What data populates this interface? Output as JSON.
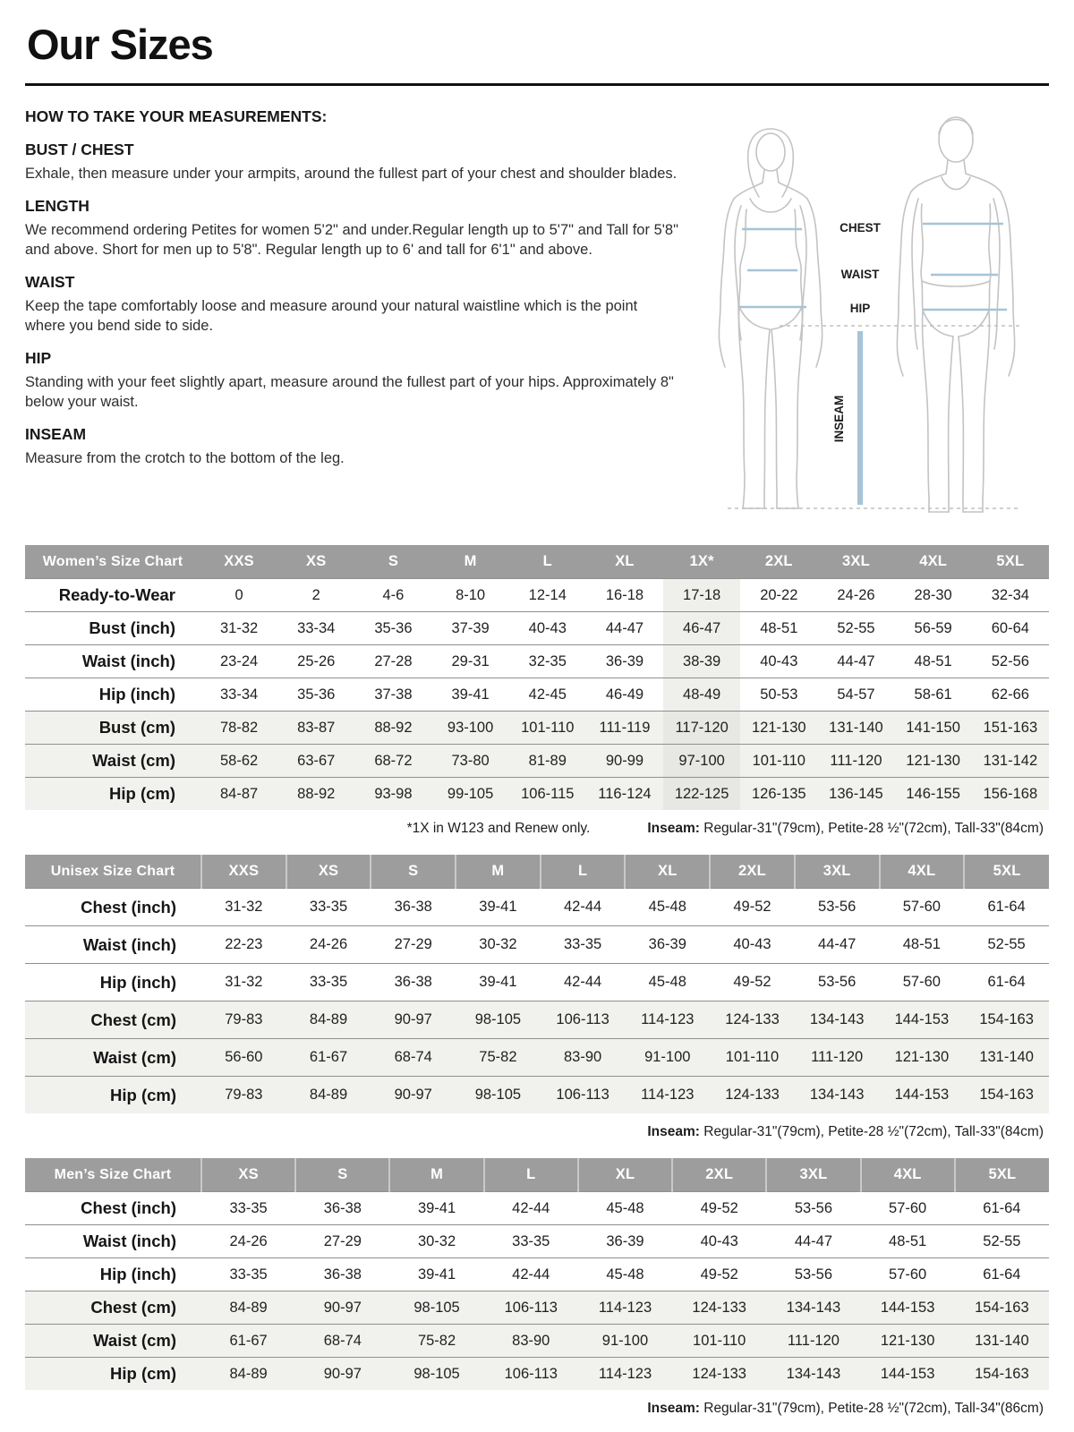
{
  "page": {
    "title": "Our Sizes"
  },
  "instructions": {
    "heading": "HOW TO TAKE YOUR MEASUREMENTS:",
    "sections": [
      {
        "title": "BUST / CHEST",
        "text": "Exhale, then measure under your armpits, around the fullest part of your chest and shoulder blades."
      },
      {
        "title": "LENGTH",
        "text": "We recommend ordering Petites for women 5'2\" and under.Regular length up to 5'7\" and Tall for 5'8\" and above. Short for men up to 5'8\". Regular length up to 6' and tall for 6'1\" and above."
      },
      {
        "title": "WAIST",
        "text": "Keep the tape comfortably loose and measure around your natural waistline which is the point where you bend side to side."
      },
      {
        "title": "HIP",
        "text": "Standing with your feet slightly apart, measure around the fullest part of your hips. Approximately 8\" below your waist."
      },
      {
        "title": "INSEAM",
        "text": "Measure from the crotch to the bottom of the leg."
      }
    ]
  },
  "diagram": {
    "labels": {
      "chest": "CHEST",
      "waist": "WAIST",
      "hip": "HIP",
      "inseam": "INSEAM"
    },
    "line_color": "#a5c4d7",
    "outline_color": "#c3c3c3"
  },
  "tables": [
    {
      "name": "womens",
      "css": "table-women",
      "title": "Women’s Size Chart",
      "columns": [
        "XXS",
        "XS",
        "S",
        "M",
        "L",
        "XL",
        "1X*",
        "2XL",
        "3XL",
        "4XL",
        "5XL"
      ],
      "highlight_col": 6,
      "rows": [
        {
          "label": "Ready-to-Wear",
          "shaded": false,
          "values": [
            "0",
            "2",
            "4-6",
            "8-10",
            "12-14",
            "16-18",
            "17-18",
            "20-22",
            "24-26",
            "28-30",
            "32-34"
          ]
        },
        {
          "label": "Bust (inch)",
          "shaded": false,
          "values": [
            "31-32",
            "33-34",
            "35-36",
            "37-39",
            "40-43",
            "44-47",
            "46-47",
            "48-51",
            "52-55",
            "56-59",
            "60-64"
          ]
        },
        {
          "label": "Waist (inch)",
          "shaded": false,
          "values": [
            "23-24",
            "25-26",
            "27-28",
            "29-31",
            "32-35",
            "36-39",
            "38-39",
            "40-43",
            "44-47",
            "48-51",
            "52-56"
          ]
        },
        {
          "label": "Hip (inch)",
          "shaded": false,
          "values": [
            "33-34",
            "35-36",
            "37-38",
            "39-41",
            "42-45",
            "46-49",
            "48-49",
            "50-53",
            "54-57",
            "58-61",
            "62-66"
          ]
        },
        {
          "label": "Bust (cm)",
          "shaded": true,
          "values": [
            "78-82",
            "83-87",
            "88-92",
            "93-100",
            "101-110",
            "111-119",
            "117-120",
            "121-130",
            "131-140",
            "141-150",
            "151-163"
          ]
        },
        {
          "label": "Waist (cm)",
          "shaded": true,
          "values": [
            "58-62",
            "63-67",
            "68-72",
            "73-80",
            "81-89",
            "90-99",
            "97-100",
            "101-110",
            "111-120",
            "121-130",
            "131-142"
          ]
        },
        {
          "label": "Hip (cm)",
          "shaded": true,
          "values": [
            "84-87",
            "88-92",
            "93-98",
            "99-105",
            "106-115",
            "116-124",
            "122-125",
            "126-135",
            "136-145",
            "146-155",
            "156-168"
          ]
        }
      ],
      "footnote_left": "*1X in W123 and Renew only.",
      "footnote_bold": "Inseam:",
      "footnote_text": " Regular-31\"(79cm), Petite-28 ½\"(72cm), Tall-33\"(84cm)"
    },
    {
      "name": "unisex",
      "css": "table-unisex",
      "title": "Unisex Size Chart",
      "columns": [
        "XXS",
        "XS",
        "S",
        "M",
        "L",
        "XL",
        "2XL",
        "3XL",
        "4XL",
        "5XL"
      ],
      "highlight_col": -1,
      "rows": [
        {
          "label": "Chest (inch)",
          "shaded": false,
          "values": [
            "31-32",
            "33-35",
            "36-38",
            "39-41",
            "42-44",
            "45-48",
            "49-52",
            "53-56",
            "57-60",
            "61-64"
          ]
        },
        {
          "label": "Waist (inch)",
          "shaded": false,
          "values": [
            "22-23",
            "24-26",
            "27-29",
            "30-32",
            "33-35",
            "36-39",
            "40-43",
            "44-47",
            "48-51",
            "52-55"
          ]
        },
        {
          "label": "Hip (inch)",
          "shaded": false,
          "values": [
            "31-32",
            "33-35",
            "36-38",
            "39-41",
            "42-44",
            "45-48",
            "49-52",
            "53-56",
            "57-60",
            "61-64"
          ]
        },
        {
          "label": "Chest (cm)",
          "shaded": true,
          "values": [
            "79-83",
            "84-89",
            "90-97",
            "98-105",
            "106-113",
            "114-123",
            "124-133",
            "134-143",
            "144-153",
            "154-163"
          ]
        },
        {
          "label": "Waist (cm)",
          "shaded": true,
          "values": [
            "56-60",
            "61-67",
            "68-74",
            "75-82",
            "83-90",
            "91-100",
            "101-110",
            "111-120",
            "121-130",
            "131-140"
          ]
        },
        {
          "label": "Hip (cm)",
          "shaded": true,
          "values": [
            "79-83",
            "84-89",
            "90-97",
            "98-105",
            "106-113",
            "114-123",
            "124-133",
            "134-143",
            "144-153",
            "154-163"
          ]
        }
      ],
      "footnote_left": "",
      "footnote_bold": "Inseam:",
      "footnote_text": " Regular-31\"(79cm), Petite-28 ½\"(72cm), Tall-33\"(84cm)"
    },
    {
      "name": "mens",
      "css": "table-men",
      "title": "Men’s Size Chart",
      "columns": [
        "XS",
        "S",
        "M",
        "L",
        "XL",
        "2XL",
        "3XL",
        "4XL",
        "5XL"
      ],
      "highlight_col": -1,
      "rows": [
        {
          "label": "Chest (inch)",
          "shaded": false,
          "values": [
            "33-35",
            "36-38",
            "39-41",
            "42-44",
            "45-48",
            "49-52",
            "53-56",
            "57-60",
            "61-64"
          ]
        },
        {
          "label": "Waist (inch)",
          "shaded": false,
          "values": [
            "24-26",
            "27-29",
            "30-32",
            "33-35",
            "36-39",
            "40-43",
            "44-47",
            "48-51",
            "52-55"
          ]
        },
        {
          "label": "Hip (inch)",
          "shaded": false,
          "values": [
            "33-35",
            "36-38",
            "39-41",
            "42-44",
            "45-48",
            "49-52",
            "53-56",
            "57-60",
            "61-64"
          ]
        },
        {
          "label": "Chest (cm)",
          "shaded": true,
          "values": [
            "84-89",
            "90-97",
            "98-105",
            "106-113",
            "114-123",
            "124-133",
            "134-143",
            "144-153",
            "154-163"
          ]
        },
        {
          "label": "Waist (cm)",
          "shaded": true,
          "values": [
            "61-67",
            "68-74",
            "75-82",
            "83-90",
            "91-100",
            "101-110",
            "111-120",
            "121-130",
            "131-140"
          ]
        },
        {
          "label": "Hip (cm)",
          "shaded": true,
          "values": [
            "84-89",
            "90-97",
            "98-105",
            "106-113",
            "114-123",
            "124-133",
            "134-143",
            "144-153",
            "154-163"
          ]
        }
      ],
      "footnote_left": "",
      "footnote_bold": "Inseam:",
      "footnote_text": " Regular-31\"(79cm), Petite-28 ½\"(72cm), Tall-34\"(86cm)"
    }
  ]
}
